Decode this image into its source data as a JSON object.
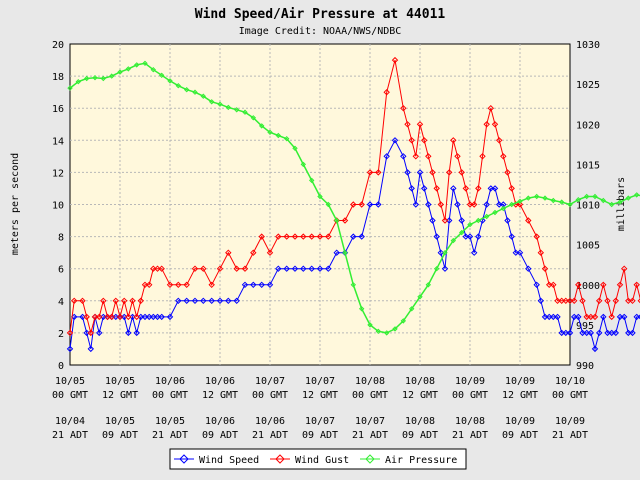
{
  "chart_data": {
    "type": "line",
    "title": "Wind Speed/Air Pressure at 44011",
    "subtitle": "Image Credit: NOAA/NWS/NDBC",
    "ylabel_left": "meters per second",
    "ylabel_right": "millibars",
    "ylim_left": [
      0,
      20
    ],
    "ylim_right": [
      990,
      1030
    ],
    "yticks_left": [
      "0",
      "2",
      "4",
      "6",
      "8",
      "10",
      "12",
      "14",
      "16",
      "18",
      "20"
    ],
    "yticks_right": [
      "990",
      "995",
      "1000",
      "1005",
      "1010",
      "1015",
      "1020",
      "1025",
      "1030"
    ],
    "xlim_hours": [
      0,
      120
    ],
    "x_ticks": [
      {
        "gmt_date": "10/05",
        "gmt_time": "00 GMT",
        "local_date": "10/04",
        "local_time": "21 ADT"
      },
      {
        "gmt_date": "10/05",
        "gmt_time": "12 GMT",
        "local_date": "10/05",
        "local_time": "09 ADT"
      },
      {
        "gmt_date": "10/06",
        "gmt_time": "00 GMT",
        "local_date": "10/05",
        "local_time": "21 ADT"
      },
      {
        "gmt_date": "10/06",
        "gmt_time": "12 GMT",
        "local_date": "10/06",
        "local_time": "09 ADT"
      },
      {
        "gmt_date": "10/07",
        "gmt_time": "00 GMT",
        "local_date": "10/06",
        "local_time": "21 ADT"
      },
      {
        "gmt_date": "10/07",
        "gmt_time": "12 GMT",
        "local_date": "10/07",
        "local_time": "09 ADT"
      },
      {
        "gmt_date": "10/08",
        "gmt_time": "00 GMT",
        "local_date": "10/07",
        "local_time": "21 ADT"
      },
      {
        "gmt_date": "10/08",
        "gmt_time": "12 GMT",
        "local_date": "10/08",
        "local_time": "09 ADT"
      },
      {
        "gmt_date": "10/09",
        "gmt_time": "00 GMT",
        "local_date": "10/08",
        "local_time": "21 ADT"
      },
      {
        "gmt_date": "10/09",
        "gmt_time": "12 GMT",
        "local_date": "10/09",
        "local_time": "09 ADT"
      },
      {
        "gmt_date": "10/10",
        "gmt_time": "00 GMT",
        "local_date": "10/09",
        "local_time": "21 ADT"
      }
    ],
    "grid": true,
    "legend_position": "bottom-center",
    "series": [
      {
        "name": "Wind Speed",
        "axis": "left",
        "color": "#0000ff",
        "marker": "diamond",
        "x": [
          0,
          1,
          3,
          4,
          5,
          6,
          7,
          8,
          9,
          10,
          11,
          12,
          13,
          14,
          15,
          16,
          17,
          18,
          19,
          20,
          21,
          22,
          24,
          26,
          28,
          30,
          32,
          34,
          36,
          38,
          40,
          42,
          44,
          46,
          48,
          50,
          52,
          54,
          56,
          58,
          60,
          62,
          64,
          66,
          68,
          70,
          72,
          74,
          76,
          78,
          80,
          81,
          82,
          83,
          84,
          85,
          86,
          87,
          88,
          89,
          90,
          91,
          92,
          93,
          94,
          95,
          96,
          97,
          98,
          99,
          100,
          101,
          102,
          103,
          104,
          105,
          106,
          107,
          108,
          110,
          112,
          113,
          114,
          115,
          116,
          117,
          118,
          119,
          120,
          121,
          122,
          123,
          124,
          125,
          126,
          127,
          128,
          129,
          130,
          131,
          132,
          133,
          134,
          135,
          136,
          137,
          138,
          139,
          140,
          141,
          142
        ],
        "y": [
          1,
          3,
          3,
          2,
          1,
          3,
          2,
          3,
          3,
          3,
          3,
          3,
          3,
          2,
          3,
          2,
          3,
          3,
          3,
          3,
          3,
          3,
          3,
          4,
          4,
          4,
          4,
          4,
          4,
          4,
          4,
          5,
          5,
          5,
          5,
          6,
          6,
          6,
          6,
          6,
          6,
          6,
          7,
          7,
          8,
          8,
          10,
          10,
          13,
          14,
          13,
          12,
          11,
          10,
          12,
          11,
          10,
          9,
          8,
          7,
          6,
          9,
          11,
          10,
          9,
          8,
          8,
          7,
          8,
          9,
          10,
          11,
          11,
          10,
          10,
          9,
          8,
          7,
          7,
          6,
          5,
          4,
          3,
          3,
          3,
          3,
          2,
          2,
          2,
          3,
          3,
          2,
          2,
          2,
          1,
          2,
          3,
          2,
          2,
          2,
          3,
          3,
          2,
          2,
          3,
          3,
          2,
          2,
          2,
          3,
          2
        ]
      },
      {
        "name": "Wind Gust",
        "axis": "left",
        "color": "#ff0000",
        "marker": "diamond",
        "x": [
          0,
          1,
          3,
          4,
          5,
          6,
          7,
          8,
          9,
          10,
          11,
          12,
          13,
          14,
          15,
          16,
          17,
          18,
          19,
          20,
          21,
          22,
          24,
          26,
          28,
          30,
          32,
          34,
          36,
          38,
          40,
          42,
          44,
          46,
          48,
          50,
          52,
          54,
          56,
          58,
          60,
          62,
          64,
          66,
          68,
          70,
          72,
          74,
          76,
          78,
          80,
          81,
          82,
          83,
          84,
          85,
          86,
          87,
          88,
          89,
          90,
          91,
          92,
          93,
          94,
          95,
          96,
          97,
          98,
          99,
          100,
          101,
          102,
          103,
          104,
          105,
          106,
          107,
          108,
          110,
          112,
          113,
          114,
          115,
          116,
          117,
          118,
          119,
          120,
          121,
          122,
          123,
          124,
          125,
          126,
          127,
          128,
          129,
          130,
          131,
          132,
          133,
          134,
          135,
          136,
          137,
          138,
          139,
          140,
          141,
          142
        ],
        "y": [
          2,
          4,
          4,
          3,
          2,
          3,
          3,
          4,
          3,
          3,
          4,
          3,
          4,
          3,
          4,
          3,
          4,
          5,
          5,
          6,
          6,
          6,
          5,
          5,
          5,
          6,
          6,
          5,
          6,
          7,
          6,
          6,
          7,
          8,
          7,
          8,
          8,
          8,
          8,
          8,
          8,
          8,
          9,
          9,
          10,
          10,
          12,
          12,
          17,
          19,
          16,
          15,
          14,
          13,
          15,
          14,
          13,
          12,
          11,
          10,
          9,
          12,
          14,
          13,
          12,
          11,
          10,
          10,
          11,
          13,
          15,
          16,
          15,
          14,
          13,
          12,
          11,
          10,
          10,
          9,
          8,
          7,
          6,
          5,
          5,
          4,
          4,
          4,
          4,
          4,
          5,
          4,
          3,
          3,
          3,
          4,
          5,
          4,
          3,
          4,
          5,
          6,
          4,
          4,
          5,
          4,
          3,
          4,
          4,
          4,
          3
        ]
      },
      {
        "name": "Air Pressure",
        "axis": "right",
        "color": "#33ee33",
        "marker": "diamond",
        "x": [
          0,
          2,
          4,
          6,
          8,
          10,
          12,
          14,
          16,
          18,
          20,
          22,
          24,
          26,
          28,
          30,
          32,
          34,
          36,
          38,
          40,
          42,
          44,
          46,
          48,
          50,
          52,
          54,
          56,
          58,
          60,
          62,
          64,
          66,
          68,
          70,
          72,
          74,
          76,
          78,
          80,
          82,
          84,
          86,
          88,
          90,
          92,
          94,
          96,
          98,
          100,
          102,
          104,
          106,
          108,
          110,
          112,
          114,
          116,
          118,
          120,
          122,
          124,
          126,
          128,
          130,
          132,
          134,
          136,
          138,
          140,
          142
        ],
        "y": [
          1024.5,
          1025.3,
          1025.7,
          1025.8,
          1025.7,
          1026.0,
          1026.5,
          1026.9,
          1027.4,
          1027.6,
          1026.8,
          1026.1,
          1025.4,
          1024.8,
          1024.3,
          1024.0,
          1023.5,
          1022.8,
          1022.5,
          1022.1,
          1021.8,
          1021.5,
          1020.8,
          1019.8,
          1019.0,
          1018.6,
          1018.2,
          1017.0,
          1015.0,
          1013.0,
          1011.0,
          1010.0,
          1008.0,
          1004.0,
          1000.0,
          997.0,
          995.0,
          994.2,
          994.0,
          994.5,
          995.5,
          997.0,
          998.5,
          1000.0,
          1002.0,
          1004.0,
          1005.5,
          1006.5,
          1007.5,
          1008.0,
          1008.5,
          1009.0,
          1009.5,
          1010.0,
          1010.4,
          1010.8,
          1011.0,
          1010.8,
          1010.5,
          1010.3,
          1010.0,
          1010.6,
          1011.0,
          1011.0,
          1010.5,
          1010.0,
          1010.3,
          1010.8,
          1011.2,
          1011.0,
          1010.6,
          1010.0
        ]
      }
    ]
  }
}
